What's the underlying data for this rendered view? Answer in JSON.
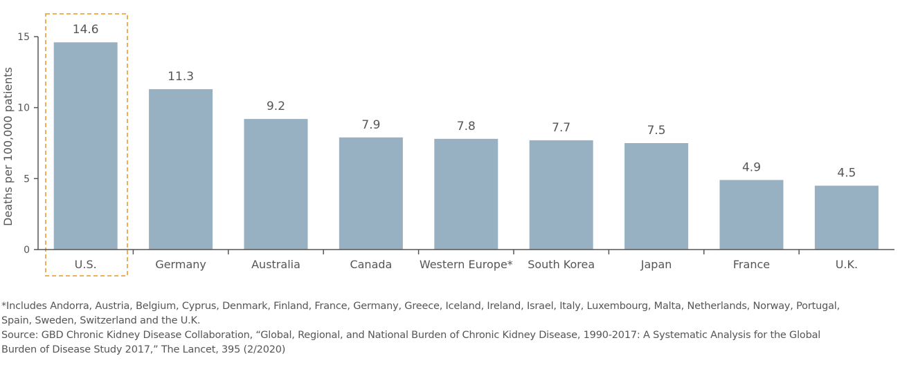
{
  "chart_data": {
    "type": "bar",
    "categories": [
      "U.S.",
      "Germany",
      "Australia",
      "Canada",
      "Western Europe*",
      "South Korea",
      "Japan",
      "France",
      "U.K."
    ],
    "values": [
      14.6,
      11.3,
      9.2,
      7.9,
      7.8,
      7.7,
      7.5,
      4.9,
      4.5
    ],
    "data_labels": [
      "14.6",
      "11.3",
      "9.2",
      "7.9",
      "7.8",
      "7.7",
      "7.5",
      "4.9",
      "4.5"
    ],
    "title": "",
    "xlabel": "",
    "ylabel": "Deaths per 100,000 patients",
    "ylim": [
      0,
      15
    ],
    "yticks": [
      0,
      5,
      10,
      15
    ],
    "grid": false,
    "highlighted_category": "U.S.",
    "colors": {
      "bar": "#97b1c3",
      "highlight_box": "#f0a446",
      "axis": "#555555"
    }
  },
  "footnotes": {
    "note_line1": "*Includes Andorra, Austria, Belgium, Cyprus, Denmark, Finland, France, Germany, Greece, Iceland, Ireland, Israel, Italy, Luxembourg, Malta, Netherlands, Norway, Portugal,",
    "note_line2": "Spain, Sweden, Switzerland and the U.K.",
    "source_line1": "Source: GBD Chronic Kidney Disease Collaboration, “Global, Regional, and National Burden of Chronic Kidney Disease, 1990-2017: A Systematic Analysis for the Global",
    "source_line2": "Burden of Disease Study 2017,” The Lancet, 395 (2/2020)"
  }
}
